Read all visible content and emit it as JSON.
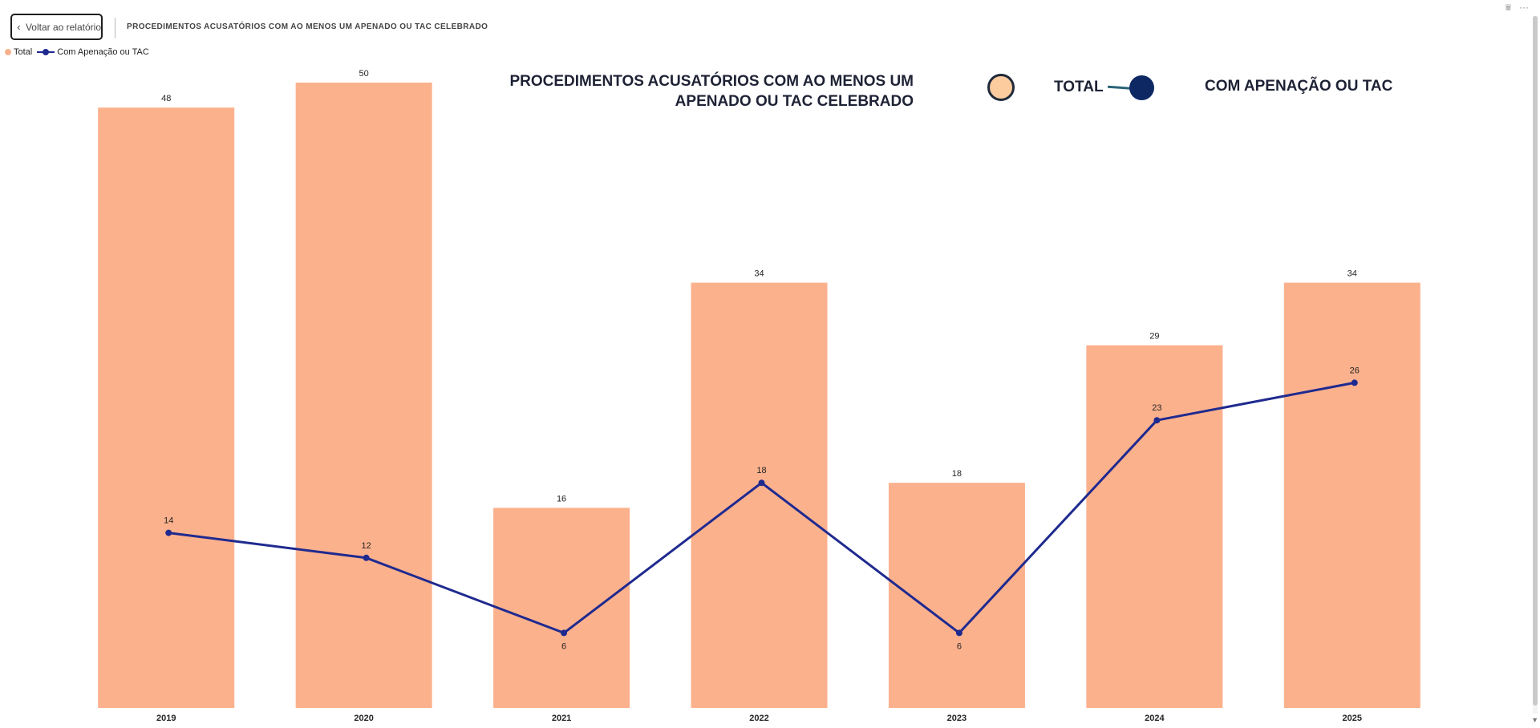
{
  "header": {
    "back_label": "Voltar ao relatório",
    "back_icon": "chevron-left-icon",
    "title": "PROCEDIMENTOS ACUSATÓRIOS COM AO MENOS UM APENADO OU TAC CELEBRADO"
  },
  "toolbar": {
    "filter_icon": "filter-icon",
    "filter_glyph": "⩸",
    "more_icon": "more-options-icon",
    "more_glyph": "···"
  },
  "legend_small": {
    "total_label": "Total",
    "apenacao_label": "Com Apenação ou TAC"
  },
  "legend_big": {
    "title_line1": "PROCEDIMENTOS ACUSATÓRIOS COM AO MENOS UM",
    "title_line2": "APENADO OU TAC CELEBRADO",
    "total_label": "TOTAL",
    "apenacao_label": "COM APENAÇÃO OU TAC"
  },
  "colors": {
    "bar": "#FCB18D",
    "big_total_circle": "#FCCB9E",
    "line": "#1F2A8F",
    "big_dot": "#0E2863"
  },
  "chart_data": {
    "type": "bar",
    "title": "PROCEDIMENTOS ACUSATÓRIOS COM AO MENOS UM APENADO OU TAC CELEBRADO",
    "xlabel": "",
    "ylabel": "",
    "ylim": [
      0,
      50
    ],
    "grid": false,
    "categories": [
      "2019",
      "2020",
      "2021",
      "2022",
      "2023",
      "2024",
      "2025"
    ],
    "series": [
      {
        "name": "Total",
        "kind": "bar",
        "values": [
          48,
          50,
          16,
          34,
          18,
          29,
          34
        ]
      },
      {
        "name": "Com Apenação ou TAC",
        "kind": "line",
        "values": [
          14,
          12,
          6,
          18,
          6,
          23,
          26
        ]
      }
    ]
  }
}
